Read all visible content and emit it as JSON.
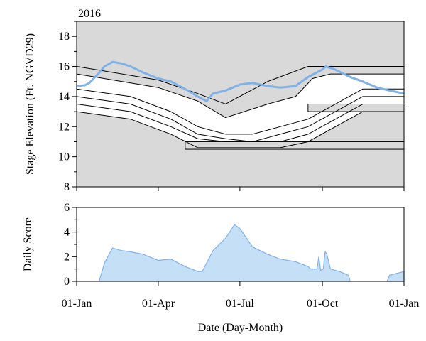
{
  "chart_data": [
    {
      "type": "area",
      "panel": "stage",
      "title": "2016",
      "ylabel": "Stage Elevation (Ft. NGVD29)",
      "ylim": [
        8,
        19
      ],
      "yticks": [
        8,
        10,
        12,
        14,
        16,
        18
      ],
      "grid": false,
      "colors": {
        "background": "#d9d9d9",
        "band_fill": "#ffffff",
        "band_line": "#000000",
        "stage_line": "#7fb2e8"
      },
      "schedule_lines": [
        {
          "points": [
            [
              "2016-01-01",
              16.0
            ],
            [
              "2016-04-01",
              15.1
            ],
            [
              "2016-05-15",
              14.2
            ],
            [
              "2016-06-15",
              13.5
            ],
            [
              "2016-08-01",
              15.0
            ],
            [
              "2016-09-15",
              16.0
            ],
            [
              "2016-12-31",
              16.0
            ]
          ]
        },
        {
          "points": [
            [
              "2016-01-01",
              15.5
            ],
            [
              "2016-04-01",
              14.6
            ],
            [
              "2016-05-15",
              13.7
            ],
            [
              "2016-06-15",
              12.6
            ],
            [
              "2016-08-01",
              13.5
            ],
            [
              "2016-09-01",
              14.0
            ],
            [
              "2016-09-20",
              15.2
            ],
            [
              "2016-10-10",
              15.5
            ],
            [
              "2016-12-31",
              15.5
            ]
          ]
        },
        {
          "points": [
            [
              "2016-01-01",
              14.5
            ],
            [
              "2016-03-01",
              14.0
            ],
            [
              "2016-04-15",
              13.0
            ],
            [
              "2016-05-15",
              12.0
            ],
            [
              "2016-06-15",
              11.5
            ],
            [
              "2016-07-15",
              11.5
            ],
            [
              "2016-08-15",
              12.0
            ],
            [
              "2016-09-15",
              12.5
            ],
            [
              "2016-11-15",
              14.5
            ],
            [
              "2016-12-31",
              14.5
            ]
          ]
        },
        {
          "points": [
            [
              "2016-01-01",
              14.0
            ],
            [
              "2016-03-01",
              13.5
            ],
            [
              "2016-04-15",
              12.5
            ],
            [
              "2016-05-15",
              11.5
            ],
            [
              "2016-06-15",
              11.2
            ],
            [
              "2016-07-15",
              11.0
            ],
            [
              "2016-08-15",
              11.5
            ],
            [
              "2016-09-15",
              12.0
            ],
            [
              "2016-11-15",
              14.0
            ],
            [
              "2016-12-31",
              14.0
            ]
          ]
        },
        {
          "points": [
            [
              "2016-01-01",
              13.5
            ],
            [
              "2016-03-01",
              13.0
            ],
            [
              "2016-04-15",
              12.0
            ],
            [
              "2016-05-15",
              11.2
            ],
            [
              "2016-06-15",
              11.0
            ],
            [
              "2016-07-15",
              11.0
            ],
            [
              "2016-08-15",
              11.0
            ],
            [
              "2016-09-15",
              11.5
            ],
            [
              "2016-11-15",
              13.5
            ],
            [
              "2016-12-31",
              13.5
            ]
          ]
        },
        {
          "points": [
            [
              "2016-01-01",
              13.0
            ],
            [
              "2016-03-01",
              12.5
            ],
            [
              "2016-04-15",
              11.5
            ],
            [
              "2016-05-15",
              10.6
            ],
            [
              "2016-06-15",
              10.6
            ],
            [
              "2016-07-15",
              10.6
            ],
            [
              "2016-08-15",
              10.6
            ],
            [
              "2016-09-15",
              11.0
            ],
            [
              "2016-11-15",
              13.0
            ],
            [
              "2016-12-31",
              13.0
            ]
          ]
        }
      ],
      "white_band": {
        "upper": [
          [
            "2016-01-01",
            15.5
          ],
          [
            "2016-04-01",
            14.6
          ],
          [
            "2016-05-15",
            13.7
          ],
          [
            "2016-06-15",
            12.6
          ],
          [
            "2016-08-01",
            13.5
          ],
          [
            "2016-09-01",
            14.0
          ],
          [
            "2016-09-20",
            15.2
          ],
          [
            "2016-10-10",
            15.5
          ],
          [
            "2016-12-31",
            15.5
          ]
        ],
        "lower": [
          [
            "2016-01-01",
            14.5
          ],
          [
            "2016-03-01",
            14.0
          ],
          [
            "2016-04-15",
            13.0
          ],
          [
            "2016-05-15",
            12.0
          ],
          [
            "2016-06-15",
            11.5
          ],
          [
            "2016-07-15",
            11.5
          ],
          [
            "2016-08-15",
            12.0
          ],
          [
            "2016-09-15",
            12.5
          ],
          [
            "2016-11-15",
            14.5
          ],
          [
            "2016-12-31",
            14.5
          ]
        ]
      },
      "outlined_boxes": [
        {
          "x": [
            "2016-05-01",
            "2016-12-31"
          ],
          "y": [
            10.5,
            11.0
          ]
        },
        {
          "x": [
            "2016-09-15",
            "2016-12-31"
          ],
          "y": [
            13.0,
            13.5
          ]
        }
      ],
      "series": [
        {
          "name": "",
          "points": [
            [
              "2016-01-01",
              14.7
            ],
            [
              "2016-01-10",
              14.75
            ],
            [
              "2016-01-15",
              14.9
            ],
            [
              "2016-01-25",
              15.5
            ],
            [
              "2016-02-01",
              16.0
            ],
            [
              "2016-02-10",
              16.3
            ],
            [
              "2016-02-20",
              16.2
            ],
            [
              "2016-03-01",
              16.0
            ],
            [
              "2016-03-15",
              15.6
            ],
            [
              "2016-04-01",
              15.2
            ],
            [
              "2016-04-15",
              15.0
            ],
            [
              "2016-05-01",
              14.5
            ],
            [
              "2016-05-15",
              14.0
            ],
            [
              "2016-05-25",
              13.7
            ],
            [
              "2016-06-01",
              14.2
            ],
            [
              "2016-06-15",
              14.4
            ],
            [
              "2016-07-01",
              14.8
            ],
            [
              "2016-07-15",
              14.9
            ],
            [
              "2016-08-01",
              14.7
            ],
            [
              "2016-08-15",
              14.6
            ],
            [
              "2016-09-01",
              14.7
            ],
            [
              "2016-09-15",
              15.3
            ],
            [
              "2016-10-01",
              15.8
            ],
            [
              "2016-10-05",
              16.0
            ],
            [
              "2016-10-15",
              15.8
            ],
            [
              "2016-11-01",
              15.3
            ],
            [
              "2016-11-15",
              15.0
            ],
            [
              "2016-12-01",
              14.6
            ],
            [
              "2016-12-15",
              14.4
            ],
            [
              "2016-12-31",
              14.2
            ]
          ]
        }
      ]
    },
    {
      "type": "area",
      "panel": "score",
      "ylabel": "Daily Score",
      "xlabel": "Date (Day-Month)",
      "ylim": [
        0,
        6
      ],
      "yticks": [
        0,
        2,
        4,
        6
      ],
      "x_tick_labels": [
        "01-Jan",
        "01-Apr",
        "01-Jul",
        "01-Oct",
        "01-Jan"
      ],
      "x_tick_dates": [
        "2016-01-01",
        "2016-04-01",
        "2016-07-01",
        "2016-10-01",
        "2016-12-31"
      ],
      "colors": {
        "fill": "#c5dff7",
        "line": "#7fb2e8"
      },
      "series": [
        {
          "name": "",
          "segments": [
            [
              [
                "2016-01-26",
                0
              ],
              [
                "2016-02-01",
                1.5
              ],
              [
                "2016-02-10",
                2.7
              ],
              [
                "2016-02-20",
                2.5
              ],
              [
                "2016-03-01",
                2.4
              ],
              [
                "2016-03-15",
                2.2
              ],
              [
                "2016-04-01",
                1.7
              ],
              [
                "2016-04-15",
                1.8
              ],
              [
                "2016-05-01",
                1.2
              ],
              [
                "2016-05-15",
                0.8
              ],
              [
                "2016-05-20",
                0.8
              ],
              [
                "2016-06-01",
                2.5
              ],
              [
                "2016-06-15",
                3.5
              ],
              [
                "2016-06-25",
                4.6
              ],
              [
                "2016-07-01",
                4.3
              ],
              [
                "2016-07-15",
                2.8
              ],
              [
                "2016-08-01",
                2.2
              ],
              [
                "2016-08-15",
                1.8
              ],
              [
                "2016-09-01",
                1.6
              ],
              [
                "2016-09-15",
                1.2
              ],
              [
                "2016-09-18",
                1.0
              ],
              [
                "2016-09-25",
                1.0
              ],
              [
                "2016-09-27",
                2.0
              ],
              [
                "2016-09-29",
                0.9
              ],
              [
                "2016-10-02",
                1.0
              ],
              [
                "2016-10-04",
                2.4
              ],
              [
                "2016-10-06",
                2.2
              ],
              [
                "2016-10-10",
                1.0
              ],
              [
                "2016-10-20",
                0.8
              ],
              [
                "2016-10-30",
                0.5
              ],
              [
                "2016-11-01",
                0
              ]
            ],
            [
              [
                "2016-12-12",
                0
              ],
              [
                "2016-12-15",
                0.5
              ],
              [
                "2016-12-31",
                0.8
              ],
              [
                "2016-12-31",
                0
              ]
            ]
          ]
        }
      ]
    }
  ]
}
